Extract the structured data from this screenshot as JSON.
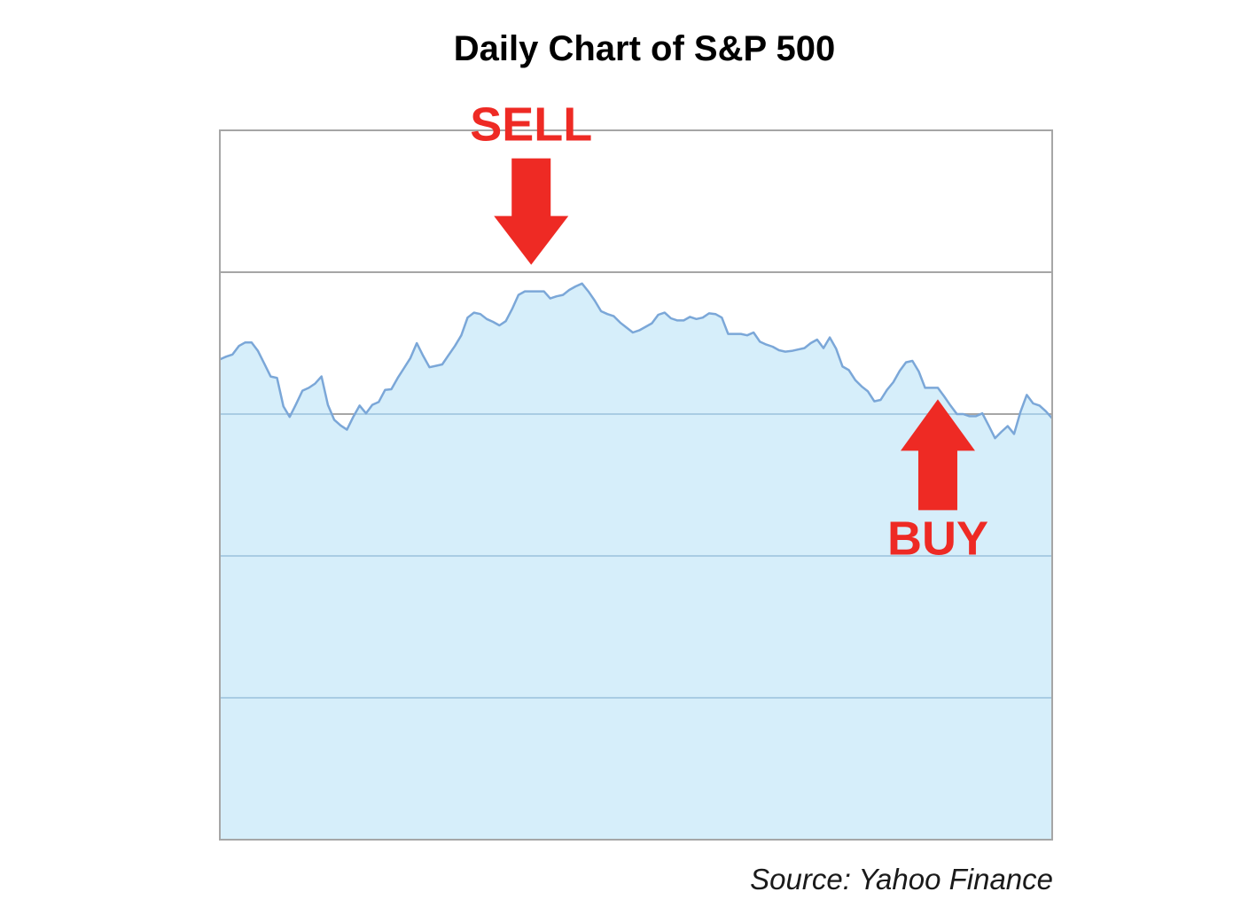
{
  "colors": {
    "area_fill": "#d6eefa",
    "line": "#7ba7d8",
    "gridline": "#a6a6a6",
    "gridline_in_area": "#a9cce3",
    "frame": "#a6a6a6",
    "annotation": "#ee2a24"
  },
  "chart_data": {
    "type": "area",
    "title": "Daily Chart of S&P 500",
    "source": "Source: Yahoo Finance",
    "xlabel": "",
    "ylabel": "",
    "legend": "none",
    "grid": true,
    "ylim": [
      0,
      100
    ],
    "gridlines_y": [
      20,
      40,
      60,
      80
    ],
    "series": [
      {
        "values": [
          67.7,
          68.1,
          68.4,
          69.6,
          70.1,
          70.1,
          68.9,
          67.1,
          65.3,
          65.1,
          61.1,
          59.6,
          61.4,
          63.3,
          63.7,
          64.3,
          65.3,
          61.3,
          59.2,
          58.4,
          57.8,
          59.6,
          61.2,
          60.1,
          61.3,
          61.7,
          63.4,
          63.5,
          65.1,
          66.5,
          67.9,
          70.0,
          68.2,
          66.6,
          66.8,
          67.0,
          68.3,
          69.6,
          71.1,
          73.6,
          74.3,
          74.1,
          73.4,
          73.0,
          72.5,
          73.1,
          74.8,
          76.8,
          77.3,
          77.3,
          77.3,
          77.3,
          76.3,
          76.6,
          76.8,
          77.5,
          78.0,
          78.4,
          77.3,
          76.0,
          74.5,
          74.1,
          73.8,
          72.9,
          72.2,
          71.5,
          71.8,
          72.3,
          72.8,
          74.0,
          74.3,
          73.5,
          73.2,
          73.2,
          73.7,
          73.4,
          73.6,
          74.2,
          74.1,
          73.6,
          71.3,
          71.3,
          71.3,
          71.1,
          71.5,
          70.2,
          69.8,
          69.5,
          69.0,
          68.8,
          68.9,
          69.1,
          69.3,
          70.0,
          70.5,
          69.3,
          70.8,
          69.2,
          66.7,
          66.2,
          64.8,
          63.9,
          63.2,
          61.8,
          62.0,
          63.4,
          64.5,
          66.1,
          67.3,
          67.5,
          66.0,
          63.7,
          63.7,
          63.7,
          62.5,
          61.2,
          60.0,
          60.0,
          59.7,
          59.7,
          60.1,
          58.4,
          56.6,
          57.5,
          58.3,
          57.2,
          60.3,
          62.7,
          61.5,
          61.2,
          60.4,
          59.4
        ]
      }
    ],
    "annotations": [
      {
        "label": "SELL",
        "direction": "down",
        "index": 49
      },
      {
        "label": "BUY",
        "direction": "up",
        "index": 113
      }
    ]
  }
}
